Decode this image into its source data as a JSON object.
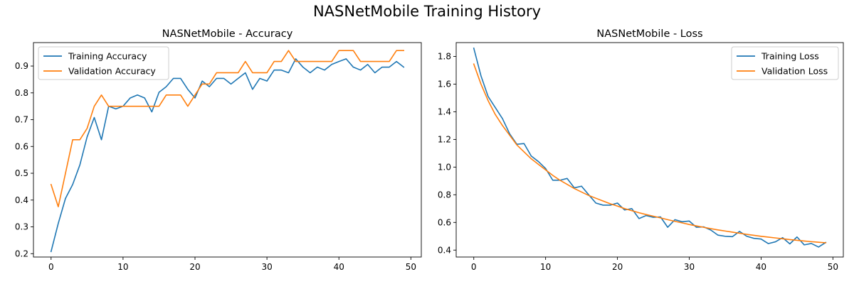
{
  "figure": {
    "suptitle": "NASNetMobile Training History"
  },
  "chart_data": [
    {
      "type": "line",
      "title": "NASNetMobile - Accuracy",
      "xlabel": "",
      "ylabel": "",
      "xlim": [
        -2.45,
        51.45
      ],
      "ylim": [
        0.1875,
        0.9875
      ],
      "xticks": [
        0,
        10,
        20,
        30,
        40,
        50
      ],
      "yticks": [
        0.2,
        0.3,
        0.4,
        0.5,
        0.6,
        0.7,
        0.8,
        0.9
      ],
      "legend_position": "upper-left",
      "grid": false,
      "series": [
        {
          "name": "Training Accuracy",
          "color": "#1f77b4",
          "x": [
            0,
            1,
            2,
            3,
            4,
            5,
            6,
            7,
            8,
            9,
            10,
            11,
            12,
            13,
            14,
            15,
            16,
            17,
            18,
            19,
            20,
            21,
            22,
            23,
            24,
            25,
            26,
            27,
            28,
            29,
            30,
            31,
            32,
            33,
            34,
            35,
            36,
            37,
            38,
            39,
            40,
            41,
            42,
            43,
            44,
            45,
            46,
            47,
            48,
            49
          ],
          "values": [
            0.208,
            0.313,
            0.406,
            0.458,
            0.531,
            0.635,
            0.708,
            0.625,
            0.75,
            0.74,
            0.75,
            0.781,
            0.792,
            0.781,
            0.729,
            0.802,
            0.823,
            0.854,
            0.854,
            0.813,
            0.781,
            0.844,
            0.823,
            0.854,
            0.854,
            0.833,
            0.854,
            0.875,
            0.813,
            0.854,
            0.844,
            0.885,
            0.885,
            0.875,
            0.927,
            0.896,
            0.875,
            0.896,
            0.885,
            0.906,
            0.917,
            0.927,
            0.896,
            0.885,
            0.906,
            0.875,
            0.896,
            0.896,
            0.917,
            0.896
          ]
        },
        {
          "name": "Validation Accuracy",
          "color": "#ff7f0e",
          "x": [
            0,
            1,
            2,
            3,
            4,
            5,
            6,
            7,
            8,
            9,
            10,
            11,
            12,
            13,
            14,
            15,
            16,
            17,
            18,
            19,
            20,
            21,
            22,
            23,
            24,
            25,
            26,
            27,
            28,
            29,
            30,
            31,
            32,
            33,
            34,
            35,
            36,
            37,
            38,
            39,
            40,
            41,
            42,
            43,
            44,
            45,
            46,
            47,
            48,
            49
          ],
          "values": [
            0.458,
            0.375,
            0.5,
            0.625,
            0.625,
            0.667,
            0.75,
            0.792,
            0.75,
            0.75,
            0.75,
            0.75,
            0.75,
            0.75,
            0.75,
            0.75,
            0.792,
            0.792,
            0.792,
            0.75,
            0.792,
            0.833,
            0.833,
            0.875,
            0.875,
            0.875,
            0.875,
            0.917,
            0.875,
            0.875,
            0.875,
            0.917,
            0.917,
            0.958,
            0.917,
            0.917,
            0.917,
            0.917,
            0.917,
            0.917,
            0.958,
            0.958,
            0.958,
            0.917,
            0.917,
            0.917,
            0.917,
            0.917,
            0.958,
            0.958
          ]
        }
      ]
    },
    {
      "type": "line",
      "title": "NASNetMobile - Loss",
      "xlabel": "",
      "ylabel": "",
      "xlim": [
        -2.45,
        51.45
      ],
      "ylim": [
        0.35,
        1.9
      ],
      "xticks": [
        0,
        10,
        20,
        30,
        40,
        50
      ],
      "yticks": [
        0.4,
        0.6,
        0.8,
        1.0,
        1.2,
        1.4,
        1.6,
        1.8
      ],
      "legend_position": "upper-right",
      "grid": false,
      "series": [
        {
          "name": "Training Loss",
          "color": "#1f77b4",
          "x": [
            0,
            1,
            2,
            3,
            4,
            5,
            6,
            7,
            8,
            9,
            10,
            11,
            12,
            13,
            14,
            15,
            16,
            17,
            18,
            19,
            20,
            21,
            22,
            23,
            24,
            25,
            26,
            27,
            28,
            29,
            30,
            31,
            32,
            33,
            34,
            35,
            36,
            37,
            38,
            39,
            40,
            41,
            42,
            43,
            44,
            45,
            46,
            47,
            48,
            49
          ],
          "values": [
            1.86,
            1.66,
            1.51,
            1.43,
            1.35,
            1.24,
            1.165,
            1.17,
            1.08,
            1.04,
            0.99,
            0.905,
            0.905,
            0.918,
            0.85,
            0.862,
            0.8,
            0.74,
            0.725,
            0.725,
            0.74,
            0.69,
            0.7,
            0.628,
            0.65,
            0.637,
            0.64,
            0.565,
            0.62,
            0.605,
            0.61,
            0.565,
            0.568,
            0.545,
            0.508,
            0.5,
            0.497,
            0.535,
            0.5,
            0.485,
            0.48,
            0.447,
            0.46,
            0.49,
            0.445,
            0.495,
            0.438,
            0.448,
            0.422,
            0.455
          ]
        },
        {
          "name": "Validation Loss",
          "color": "#ff7f0e",
          "x": [
            0,
            1,
            2,
            3,
            4,
            5,
            6,
            7,
            8,
            9,
            10,
            11,
            12,
            13,
            14,
            15,
            16,
            17,
            18,
            19,
            20,
            21,
            22,
            23,
            24,
            25,
            26,
            27,
            28,
            29,
            30,
            31,
            32,
            33,
            34,
            35,
            36,
            37,
            38,
            39,
            40,
            41,
            42,
            43,
            44,
            45,
            46,
            47,
            48,
            49
          ],
          "values": [
            1.745,
            1.6,
            1.48,
            1.38,
            1.3,
            1.23,
            1.16,
            1.11,
            1.06,
            1.02,
            0.98,
            0.94,
            0.905,
            0.875,
            0.845,
            0.82,
            0.795,
            0.775,
            0.755,
            0.735,
            0.718,
            0.7,
            0.685,
            0.67,
            0.657,
            0.645,
            0.633,
            0.62,
            0.608,
            0.597,
            0.585,
            0.575,
            0.565,
            0.555,
            0.546,
            0.538,
            0.53,
            0.522,
            0.514,
            0.507,
            0.5,
            0.494,
            0.488,
            0.482,
            0.476,
            0.471,
            0.466,
            0.461,
            0.457,
            0.453
          ]
        }
      ]
    }
  ]
}
